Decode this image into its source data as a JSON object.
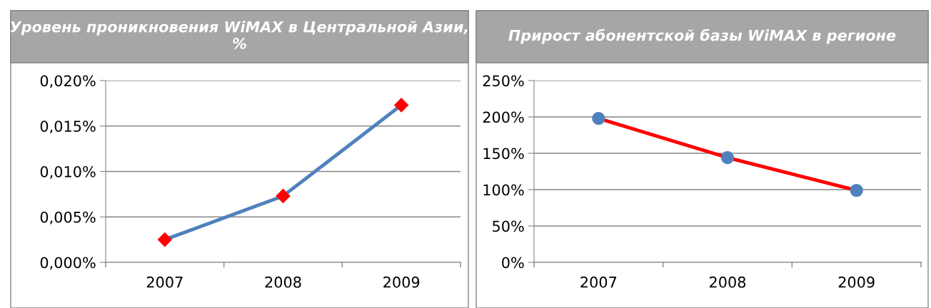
{
  "chart_data": [
    {
      "type": "line",
      "title": "Уровень проникновения WiMAX в Центральной Азии, %",
      "categories": [
        "2007",
        "2008",
        "2009"
      ],
      "series": [
        {
          "color": "#4f81bd",
          "colors": [
            "#ff0000",
            "#ff0000",
            "#ff0000"
          ],
          "values": [
            0.0025,
            0.0073,
            0.0173
          ]
        }
      ],
      "marker": "diamond",
      "ylim": [
        0,
        0.02
      ],
      "yticks": [
        {
          "value": 0,
          "label": "0,000%"
        },
        {
          "value": 0.005,
          "label": "0,005%"
        },
        {
          "value": 0.01,
          "label": "0,010%"
        },
        {
          "value": 0.015,
          "label": "0,015%"
        },
        {
          "value": 0.02,
          "label": "0,020%"
        }
      ],
      "grid": "y",
      "legend": false
    },
    {
      "type": "line",
      "title": "Прирост абонентской базы WiMAX в регионе",
      "categories": [
        "2007",
        "2008",
        "2009"
      ],
      "series": [
        {
          "color": "#ff0000",
          "colors": [
            "#4f81bd",
            "#4f81bd",
            "#4f81bd"
          ],
          "values": [
            198,
            144,
            99
          ]
        }
      ],
      "marker": "circle",
      "ylim": [
        0,
        250
      ],
      "yticks": [
        {
          "value": 0,
          "label": "0%"
        },
        {
          "value": 50,
          "label": "50%"
        },
        {
          "value": 100,
          "label": "100%"
        },
        {
          "value": 150,
          "label": "150%"
        },
        {
          "value": 200,
          "label": "200%"
        },
        {
          "value": 250,
          "label": "250%"
        }
      ],
      "grid": "y",
      "legend": false
    }
  ]
}
